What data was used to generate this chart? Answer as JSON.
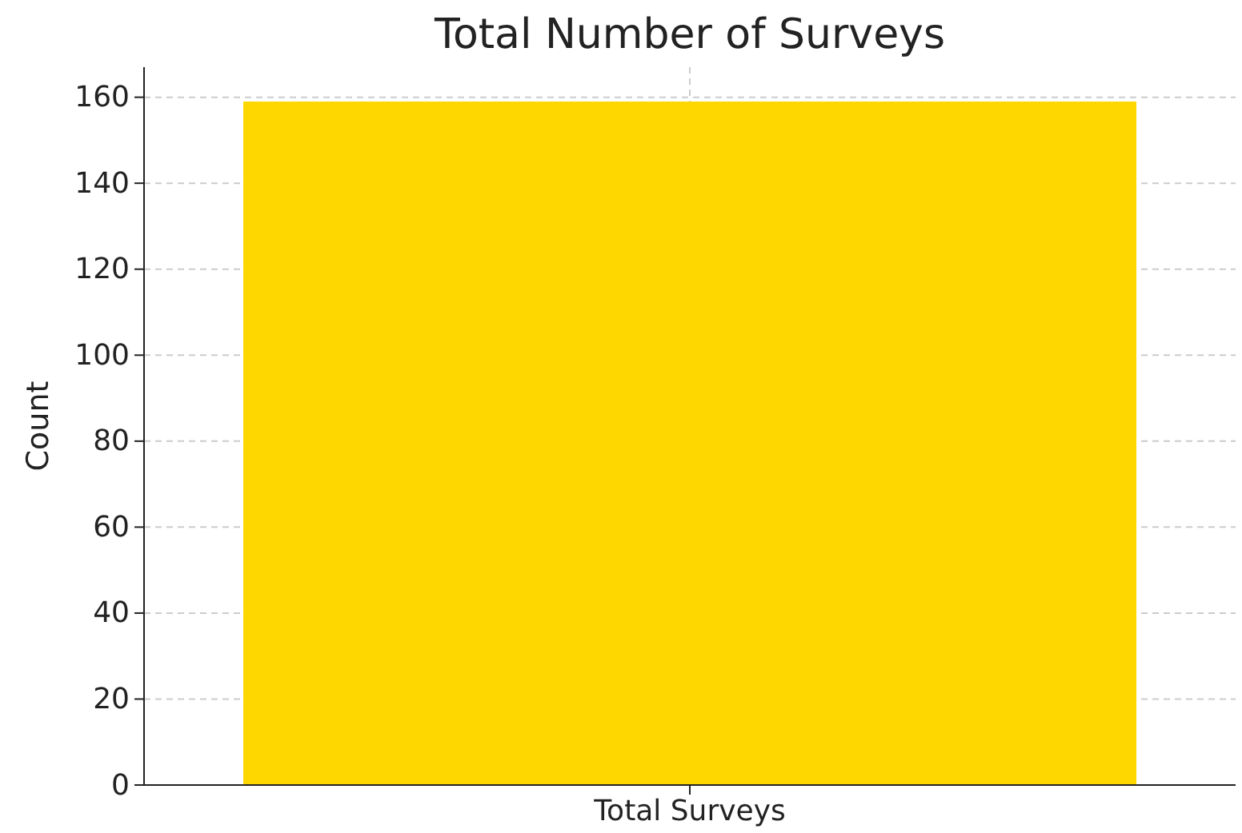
{
  "chart_data": {
    "type": "bar",
    "title": "Total Number of Surveys",
    "ylabel": "Count",
    "categories": [
      "Total Surveys"
    ],
    "values": [
      159
    ],
    "color": "#ffd700",
    "ylim": [
      0,
      167
    ],
    "yticks": [
      0,
      20,
      40,
      60,
      80,
      100,
      120,
      140,
      160
    ],
    "grid": true
  }
}
